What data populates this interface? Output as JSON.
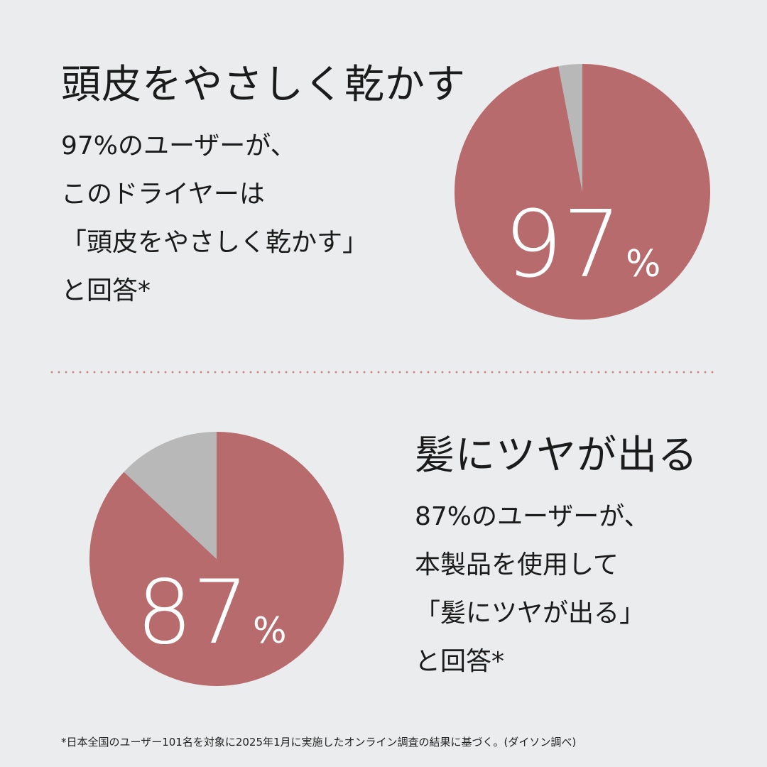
{
  "colors": {
    "background": "#ebeced",
    "pie_main": "#b76b6d",
    "pie_rest": "#b8b8b8",
    "divider": "#c88a8a",
    "text": "#1b1b1b",
    "pie_label": "#ffffff"
  },
  "sections": [
    {
      "title": "頭皮をやさしく乾かす",
      "lines": [
        "97%のユーザーが、",
        "このドライヤーは",
        "「頭皮をやさしく乾かす」",
        "と回答*"
      ],
      "pie_number": "97",
      "pie_unit": "%"
    },
    {
      "title": "髪にツヤが出る",
      "lines": [
        "87%のユーザーが、",
        "本製品を使用して",
        "「髪にツヤが出る」",
        "と回答*"
      ],
      "pie_number": "87",
      "pie_unit": "%"
    }
  ],
  "footnote": "*日本全国のユーザー101名を対象に2025年1月に実施したオンライン調査の結果に基づく。(ダイソン調べ)",
  "chart_data": [
    {
      "type": "pie",
      "labels": [
        "",
        ""
      ],
      "values": [
        97,
        3
      ]
    },
    {
      "type": "pie",
      "labels": [
        "",
        ""
      ],
      "values": [
        87,
        13
      ]
    }
  ]
}
